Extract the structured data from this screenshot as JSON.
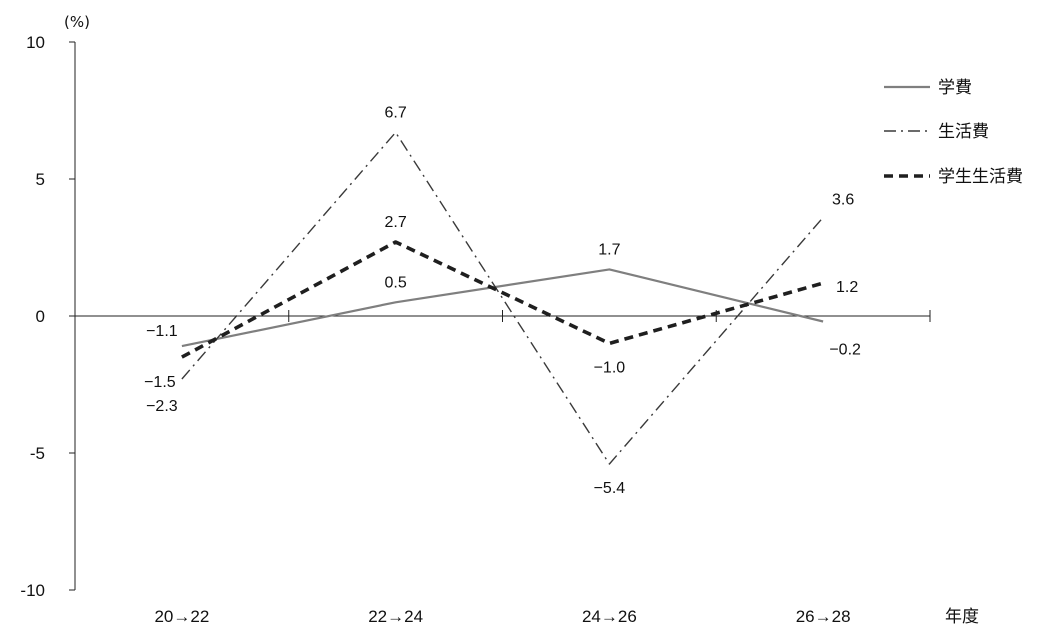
{
  "chart_data": {
    "type": "line",
    "title": "",
    "ylabel": "(%)",
    "xlabel": "年度",
    "categories": [
      "20→22",
      "22→24",
      "24→26",
      "26→28"
    ],
    "ylim": [
      -10,
      10
    ],
    "yticks": [
      10,
      5,
      0,
      -5,
      -10
    ],
    "ytick_labels": [
      "10",
      "5",
      "0",
      "-5",
      "-10"
    ],
    "grid": false,
    "legend_position": "top-right",
    "series": [
      {
        "name": "学費",
        "values": [
          -1.1,
          0.5,
          1.7,
          -0.2
        ],
        "labels": [
          "−1.1",
          "0.5",
          "1.7",
          "−0.2"
        ],
        "color": "#7f7f7f",
        "style": "solid"
      },
      {
        "name": "生活費",
        "values": [
          -2.3,
          6.7,
          -5.4,
          3.6
        ],
        "labels": [
          "−2.3",
          "6.7",
          "−5.4",
          "3.6"
        ],
        "color": "#3a3a3a",
        "style": "dash-dot"
      },
      {
        "name": "学生生活費",
        "values": [
          -1.5,
          2.7,
          -1.0,
          1.2
        ],
        "labels": [
          "−1.5",
          "2.7",
          "−1.0",
          "1.2"
        ],
        "color": "#1f1f1f",
        "style": "dashed"
      }
    ]
  }
}
